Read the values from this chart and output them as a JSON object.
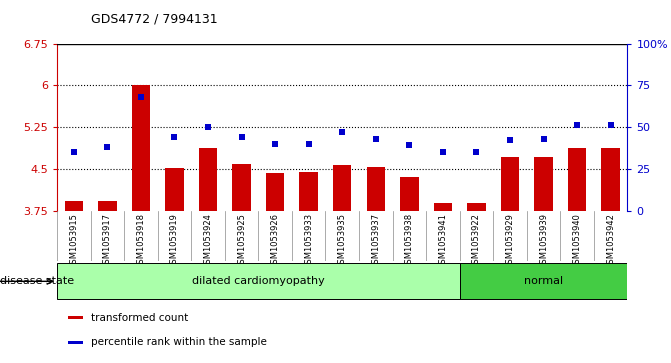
{
  "title": "GDS4772 / 7994131",
  "samples": [
    "GSM1053915",
    "GSM1053917",
    "GSM1053918",
    "GSM1053919",
    "GSM1053924",
    "GSM1053925",
    "GSM1053926",
    "GSM1053933",
    "GSM1053935",
    "GSM1053937",
    "GSM1053938",
    "GSM1053941",
    "GSM1053922",
    "GSM1053929",
    "GSM1053939",
    "GSM1053940",
    "GSM1053942"
  ],
  "bar_values": [
    3.93,
    3.93,
    6.01,
    4.51,
    4.87,
    4.58,
    4.42,
    4.44,
    4.57,
    4.53,
    4.35,
    3.89,
    3.88,
    4.72,
    4.72,
    4.88,
    4.87
  ],
  "dot_values": [
    35,
    38,
    68,
    44,
    50,
    44,
    40,
    40,
    47,
    43,
    39,
    35,
    35,
    42,
    43,
    51,
    51
  ],
  "bar_color": "#cc0000",
  "dot_color": "#0000cc",
  "ylim_left": [
    3.75,
    6.75
  ],
  "ylim_right": [
    0,
    100
  ],
  "yticks_left": [
    3.75,
    4.5,
    5.25,
    6.0,
    6.75
  ],
  "yticks_left_labels": [
    "3.75",
    "4.5",
    "5.25",
    "6",
    "6.75"
  ],
  "yticks_right": [
    0,
    25,
    50,
    75,
    100
  ],
  "yticks_right_labels": [
    "0",
    "25",
    "50",
    "75",
    "100%"
  ],
  "hlines": [
    4.5,
    5.25,
    6.0
  ],
  "disease_groups": [
    {
      "text": "dilated cardiomyopathy",
      "start": 0,
      "end": 11,
      "color": "#aaffaa"
    },
    {
      "text": "normal",
      "start": 12,
      "end": 16,
      "color": "#44cc44"
    }
  ],
  "xlabel_disease": "disease state",
  "legend_bar": "transformed count",
  "legend_dot": "percentile rank within the sample",
  "bar_bottom": 3.75,
  "tickbox_color": "#d8d8d8",
  "plot_bg": "#ffffff",
  "tickbox_line_color": "#888888"
}
